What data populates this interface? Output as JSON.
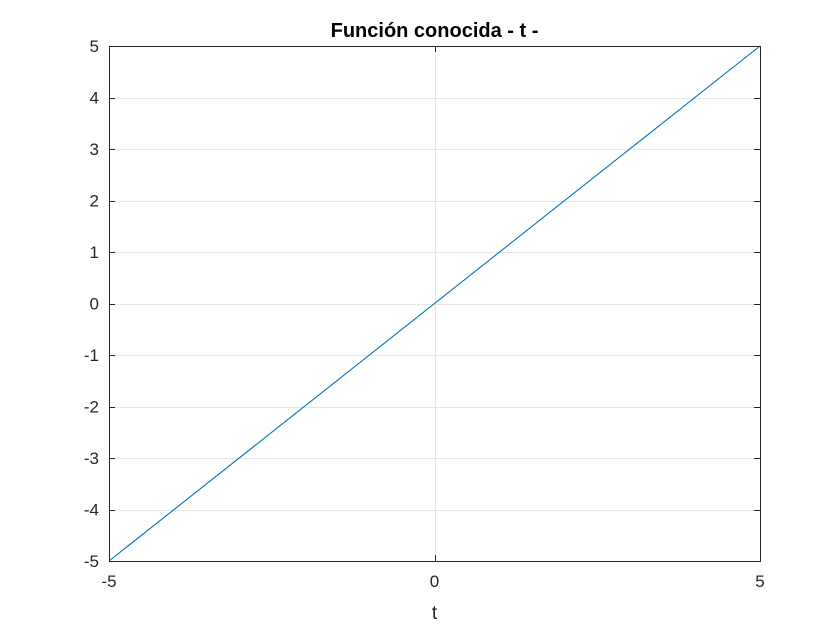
{
  "chart_data": {
    "type": "line",
    "title": "Función conocida - t -",
    "xlabel": "t",
    "ylabel": "",
    "xlim": [
      -5,
      5
    ],
    "ylim": [
      -5,
      5
    ],
    "grid": true,
    "x_ticks": [
      -5,
      0,
      5
    ],
    "x_tick_labels": [
      "-5",
      "0",
      "5"
    ],
    "y_ticks": [
      -5,
      -4,
      -3,
      -2,
      -1,
      0,
      1,
      2,
      3,
      4,
      5
    ],
    "y_tick_labels": [
      "-5",
      "-4",
      "-3",
      "-2",
      "-1",
      "0",
      "1",
      "2",
      "3",
      "4",
      "5"
    ],
    "series": [
      {
        "color": "#0072BD",
        "x": [
          -5,
          5
        ],
        "y": [
          -5,
          5
        ]
      }
    ]
  }
}
